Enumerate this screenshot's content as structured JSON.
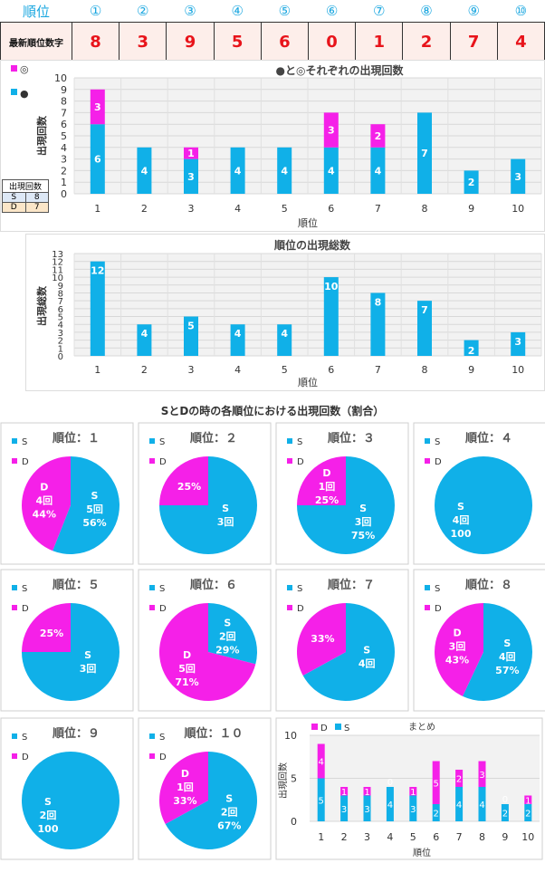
{
  "header": {
    "label": "順位",
    "ranks": [
      "①",
      "②",
      "③",
      "④",
      "⑤",
      "⑥",
      "⑦",
      "⑧",
      "⑨",
      "⑩"
    ],
    "latest_label": "最新順位数字",
    "latest_digits": [
      "8",
      "3",
      "9",
      "5",
      "6",
      "0",
      "1",
      "2",
      "7",
      "4"
    ]
  },
  "counts_box": {
    "title": "出現回数",
    "rows": [
      {
        "k": "S",
        "v": "8"
      },
      {
        "k": "D",
        "v": "7"
      }
    ]
  },
  "colors": {
    "s": "#10b0e8",
    "d": "#f520e8",
    "plot_bg": "#f2f2f2"
  },
  "chart_data": [
    {
      "type": "bar",
      "title": "●と◎それぞれの出現回数",
      "xlabel": "順位",
      "ylabel": "出現回数",
      "ylim": [
        0,
        10
      ],
      "categories": [
        "1",
        "2",
        "3",
        "4",
        "5",
        "6",
        "7",
        "8",
        "9",
        "10"
      ],
      "legend": [
        "◎",
        "●"
      ],
      "series": [
        {
          "name": "●",
          "values": [
            6,
            4,
            3,
            4,
            4,
            4,
            4,
            7,
            2,
            3
          ]
        },
        {
          "name": "◎",
          "values": [
            3,
            0,
            1,
            0,
            0,
            3,
            2,
            0,
            0,
            0
          ]
        }
      ]
    },
    {
      "type": "bar",
      "title": "順位の出現総数",
      "xlabel": "順位",
      "ylabel": "出現総数",
      "ylim": [
        0,
        13
      ],
      "categories": [
        "1",
        "2",
        "3",
        "4",
        "5",
        "6",
        "7",
        "8",
        "9",
        "10"
      ],
      "values": [
        12,
        4,
        5,
        4,
        4,
        10,
        8,
        7,
        2,
        3
      ]
    },
    {
      "type": "pie",
      "section_title": "SとDの時の各順位における出現回数（割合）",
      "legend": [
        "S",
        "D"
      ],
      "pies": [
        {
          "title": "順位：１",
          "s_label": "S",
          "s_count": "5回",
          "s_pct": "56%",
          "d_label": "D",
          "d_count": "4回",
          "d_pct": "44%",
          "s_frac": 0.56
        },
        {
          "title": "順位：２",
          "s_label": "S",
          "s_count": "3回",
          "s_pct": "",
          "d_label": "",
          "d_count": "",
          "d_pct": "25%",
          "s_frac": 0.75
        },
        {
          "title": "順位：３",
          "s_label": "S",
          "s_count": "3回",
          "s_pct": "75%",
          "d_label": "D",
          "d_count": "1回",
          "d_pct": "25%",
          "s_frac": 0.75
        },
        {
          "title": "順位：４",
          "s_label": "S",
          "s_count": "4回",
          "s_pct": "100",
          "d_label": "",
          "d_count": "",
          "d_pct": "0",
          "s_frac": 1.0
        },
        {
          "title": "順位：５",
          "s_label": "S",
          "s_count": "3回",
          "s_pct": "",
          "d_label": "",
          "d_count": "",
          "d_pct": "25%",
          "s_frac": 0.75
        },
        {
          "title": "順位：６",
          "s_label": "S",
          "s_count": "2回",
          "s_pct": "29%",
          "d_label": "D",
          "d_count": "5回",
          "d_pct": "71%",
          "s_frac": 0.29
        },
        {
          "title": "順位：７",
          "s_label": "S",
          "s_count": "4回",
          "s_pct": "",
          "d_label": "",
          "d_count": "",
          "d_pct": "33%",
          "s_frac": 0.67
        },
        {
          "title": "順位：８",
          "s_label": "S",
          "s_count": "4回",
          "s_pct": "57%",
          "d_label": "D",
          "d_count": "3回",
          "d_pct": "43%",
          "s_frac": 0.57
        },
        {
          "title": "順位：９",
          "s_label": "S",
          "s_count": "2回",
          "s_pct": "100",
          "d_label": "",
          "d_count": "",
          "d_pct": "0",
          "s_frac": 1.0
        },
        {
          "title": "順位：１０",
          "s_label": "S",
          "s_count": "2回",
          "s_pct": "67%",
          "d_label": "D",
          "d_count": "1回",
          "d_pct": "33%",
          "s_frac": 0.67
        }
      ]
    },
    {
      "type": "bar",
      "title": "まとめ",
      "ylabel": "出現回数",
      "xlabel": "順位",
      "ylim": [
        0,
        10
      ],
      "legend": [
        "D",
        "S"
      ],
      "categories": [
        "1",
        "2",
        "3",
        "4",
        "5",
        "6",
        "7",
        "8",
        "9",
        "10"
      ],
      "series": [
        {
          "name": "S",
          "values": [
            5,
            3,
            3,
            4,
            3,
            2,
            4,
            4,
            2,
            2
          ]
        },
        {
          "name": "D",
          "values": [
            4,
            1,
            1,
            0,
            1,
            5,
            2,
            3,
            0,
            1
          ]
        }
      ]
    }
  ]
}
